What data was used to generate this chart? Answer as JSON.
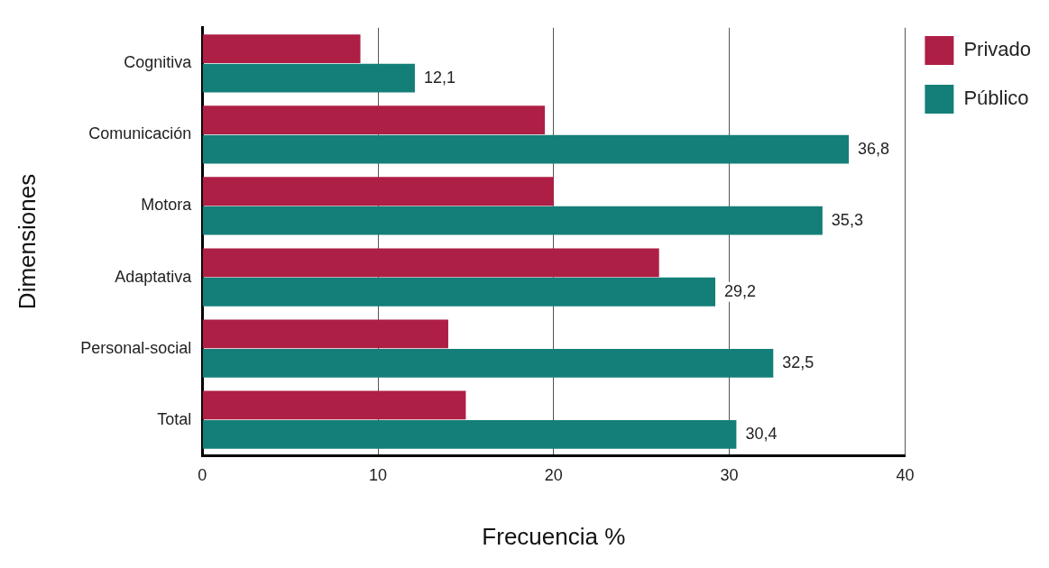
{
  "chart_data": {
    "type": "bar",
    "orientation": "horizontal",
    "xlabel": "Frecuencia %",
    "ylabel": "Dimensiones",
    "categories": [
      "Cognitiva",
      "Comunicación",
      "Motora",
      "Adaptativa",
      "Personal-social",
      "Total"
    ],
    "series": [
      {
        "name": "Privado",
        "color": "#ae1f45",
        "values": [
          9.0,
          19.5,
          20.0,
          26.0,
          14.0,
          15.0
        ]
      },
      {
        "name": "Público",
        "color": "#147f78",
        "values": [
          12.1,
          36.8,
          35.3,
          29.2,
          32.5,
          30.4
        ],
        "value_labels": [
          "12,1",
          "36,8",
          "35,3",
          "29,2",
          "32,5",
          "30,4"
        ]
      }
    ],
    "xlim": [
      0,
      40
    ],
    "xticks": [
      0,
      10,
      20,
      30,
      40
    ],
    "grid": "x",
    "legend": "top right"
  }
}
